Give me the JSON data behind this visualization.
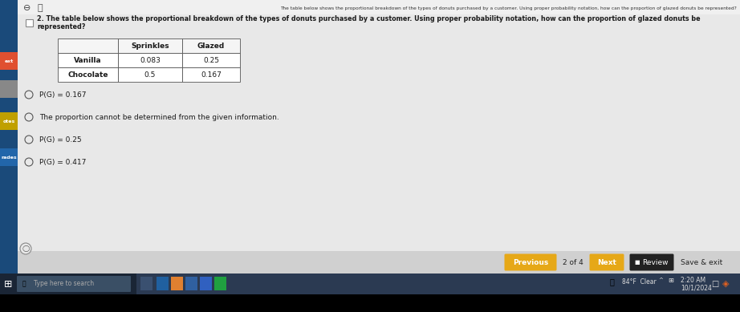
{
  "bg_color": "#c8c8c8",
  "main_content_color": "#e8e8e8",
  "top_bar_color": "#f0f0f0",
  "header_text": "2. The table below shows the proportional breakdown of the types of donuts purchased by a customer. Using proper probability notation, how can the proportion of glazed donuts be represented?",
  "top_right_text": "The table below shows the proportional breakdown of the types of donuts purchased by a customer. Using proper probability notation, how can the proportion of glazed donuts be represented?",
  "table_rows": [
    [
      "",
      "Sprinkles",
      "Glazed"
    ],
    [
      "Vanilla",
      "0.083",
      "0.25"
    ],
    [
      "Chocolate",
      "0.5",
      "0.167"
    ]
  ],
  "options": [
    "P(G) = 0.167",
    "The proportion cannot be determined from the given information.",
    "P(G) = 0.25",
    "P(G) = 0.417"
  ],
  "previous_btn_color": "#e6a817",
  "next_btn_color": "#e6a817",
  "pagination_text": "2 of 4",
  "review_text": "Review",
  "save_exit_text": "Save & exit",
  "taskbar_color": "#2b3a52",
  "taskbar_left_color": "#1a2535",
  "weather_text": "84°F  Clear",
  "time_text": "2:20 AM",
  "date_text": "10/1/2024",
  "search_text": "Type here to search",
  "left_sidebar_color": "#1a4a7a",
  "left_sidebar_icons_color": "#e05030",
  "font_color_dark": "#1a1a1a",
  "font_color_light": "#ffffff",
  "table_border_color": "#555555",
  "table_bg": "#ffffff",
  "nav_bar_color": "#d0d0d0"
}
